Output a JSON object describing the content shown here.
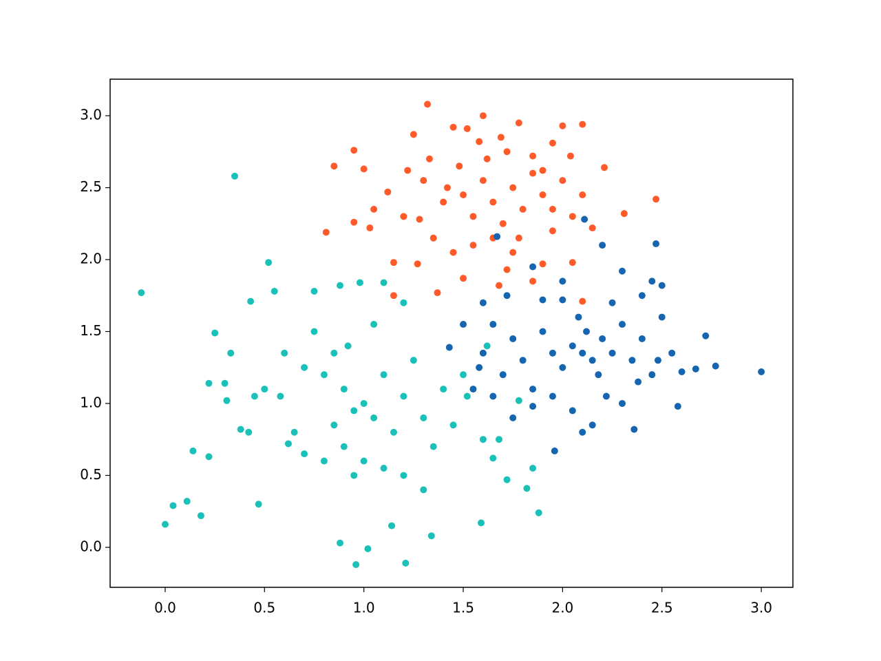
{
  "chart_data": {
    "type": "scatter",
    "xlim": [
      -0.277,
      3.159
    ],
    "ylim": [
      -0.278,
      3.254
    ],
    "xticks": [
      {
        "value": 0,
        "label": "0.0"
      },
      {
        "value": 0.5,
        "label": "0.5"
      },
      {
        "value": 1,
        "label": "1.0"
      },
      {
        "value": 1.5,
        "label": "1.5"
      },
      {
        "value": 2,
        "label": "2.0"
      },
      {
        "value": 2.5,
        "label": "2.5"
      },
      {
        "value": 3,
        "label": "3.0"
      }
    ],
    "yticks": [
      {
        "value": 0,
        "label": "0.0"
      },
      {
        "value": 0.5,
        "label": "0.5"
      },
      {
        "value": 1,
        "label": "1.0"
      },
      {
        "value": 1.5,
        "label": "1.5"
      },
      {
        "value": 2,
        "label": "2.0"
      },
      {
        "value": 2.5,
        "label": "2.5"
      },
      {
        "value": 3,
        "label": "3.0"
      }
    ],
    "grid": false,
    "series": [
      {
        "color": "#fe5a2a",
        "x": [
          1.32,
          0.85,
          0.81,
          1.6,
          2.1,
          2.47,
          2.31,
          2.21,
          2.1,
          1.85,
          1.15,
          1.37,
          0.95,
          1.15,
          1.27,
          1.0,
          1.05,
          0.95,
          1.03,
          1.25,
          1.78,
          2.0,
          1.45,
          1.52,
          1.95,
          1.69,
          1.3,
          1.12,
          1.2,
          1.4,
          1.5,
          1.55,
          1.6,
          1.65,
          1.7,
          1.75,
          1.8,
          1.85,
          1.9,
          1.95,
          2.0,
          2.05,
          2.1,
          1.35,
          1.45,
          1.55,
          1.65,
          1.75,
          1.9,
          2.05,
          1.62,
          1.72,
          1.48,
          1.58,
          1.42,
          1.28,
          1.33,
          1.85,
          2.15,
          1.95,
          1.78,
          1.5,
          1.68,
          1.72,
          1.22,
          1.9,
          2.04
        ],
        "y": [
          3.08,
          2.65,
          2.19,
          3.0,
          2.94,
          2.42,
          2.32,
          2.64,
          1.71,
          1.85,
          1.75,
          1.77,
          2.76,
          1.98,
          1.97,
          2.63,
          2.35,
          2.26,
          2.22,
          2.87,
          2.95,
          2.93,
          2.92,
          2.91,
          2.81,
          2.85,
          2.55,
          2.47,
          2.3,
          2.4,
          2.45,
          2.3,
          2.55,
          2.4,
          2.25,
          2.5,
          2.35,
          2.6,
          2.45,
          2.2,
          2.55,
          2.3,
          2.45,
          2.15,
          2.05,
          2.1,
          2.15,
          2.05,
          1.97,
          1.98,
          2.7,
          2.75,
          2.65,
          2.82,
          2.5,
          2.28,
          2.7,
          2.72,
          2.22,
          2.35,
          2.15,
          1.87,
          1.82,
          1.93,
          2.62,
          2.62,
          2.72
        ]
      },
      {
        "color": "#1565b0",
        "x": [
          3.0,
          2.77,
          2.58,
          1.96,
          2.47,
          2.11,
          1.67,
          2.36,
          2.72,
          1.43,
          2.1,
          2.15,
          2.05,
          2.2,
          2.0,
          2.12,
          2.18,
          2.08,
          1.95,
          1.9,
          2.25,
          2.3,
          2.35,
          2.4,
          2.45,
          2.5,
          2.55,
          1.8,
          1.75,
          1.7,
          1.65,
          1.6,
          1.55,
          1.85,
          1.95,
          2.05,
          2.15,
          2.22,
          2.3,
          2.38,
          2.48,
          2.6,
          2.67,
          2.4,
          2.3,
          2.2,
          2.0,
          1.85,
          1.72,
          1.6,
          1.5,
          1.58,
          1.65,
          1.75,
          1.85,
          2.25,
          2.45,
          1.9,
          2.0,
          2.1,
          2.5
        ],
        "y": [
          1.22,
          1.26,
          0.98,
          0.67,
          2.11,
          2.28,
          2.16,
          0.82,
          1.47,
          1.39,
          1.35,
          1.3,
          1.4,
          1.45,
          1.25,
          1.5,
          1.2,
          1.6,
          1.35,
          1.5,
          1.35,
          1.55,
          1.3,
          1.45,
          1.2,
          1.6,
          1.35,
          1.3,
          1.45,
          1.2,
          1.55,
          1.35,
          1.1,
          1.1,
          1.05,
          0.95,
          0.85,
          1.05,
          1.0,
          1.15,
          1.3,
          1.22,
          1.24,
          1.75,
          1.92,
          2.1,
          1.85,
          1.95,
          1.75,
          1.7,
          1.55,
          1.25,
          1.05,
          0.9,
          0.98,
          1.7,
          1.85,
          1.72,
          1.72,
          0.8,
          1.82
        ]
      },
      {
        "color": "#19c1b9",
        "x": [
          -0.12,
          0.0,
          0.35,
          0.52,
          0.96,
          1.21,
          1.88,
          1.59,
          0.88,
          1.02,
          0.04,
          0.11,
          0.18,
          1.34,
          0.14,
          0.22,
          0.25,
          0.3,
          0.22,
          0.31,
          0.43,
          0.55,
          0.47,
          0.6,
          0.7,
          0.75,
          0.8,
          0.85,
          0.9,
          0.95,
          1.0,
          1.05,
          1.1,
          1.15,
          1.2,
          1.25,
          1.3,
          1.35,
          1.4,
          1.45,
          0.65,
          0.7,
          0.8,
          0.85,
          0.9,
          0.95,
          1.0,
          1.1,
          1.2,
          1.3,
          0.88,
          0.98,
          1.1,
          1.2,
          1.05,
          0.92,
          0.5,
          0.45,
          0.38,
          0.42,
          0.58,
          1.6,
          1.68,
          1.72,
          1.82,
          1.65,
          1.78,
          1.85,
          1.52,
          1.62,
          1.5,
          0.75,
          0.62,
          1.14,
          0.33
        ],
        "y": [
          1.77,
          0.16,
          2.58,
          1.98,
          -0.12,
          -0.11,
          0.24,
          0.17,
          0.03,
          -0.01,
          0.29,
          0.32,
          0.22,
          0.08,
          0.67,
          0.63,
          1.49,
          1.14,
          1.14,
          1.02,
          1.71,
          1.78,
          0.3,
          1.35,
          1.25,
          1.5,
          1.2,
          1.35,
          1.1,
          0.95,
          1.0,
          0.9,
          1.2,
          0.8,
          1.05,
          1.3,
          0.9,
          0.7,
          1.1,
          0.85,
          0.8,
          0.65,
          0.6,
          0.85,
          0.7,
          0.5,
          0.6,
          0.55,
          0.5,
          0.4,
          1.82,
          1.84,
          1.84,
          1.7,
          1.55,
          1.4,
          1.1,
          1.05,
          0.82,
          0.8,
          1.05,
          0.75,
          0.75,
          0.47,
          0.41,
          0.62,
          1.02,
          0.55,
          1.05,
          1.4,
          1.2,
          1.78,
          0.72,
          0.15,
          1.35
        ]
      }
    ]
  }
}
